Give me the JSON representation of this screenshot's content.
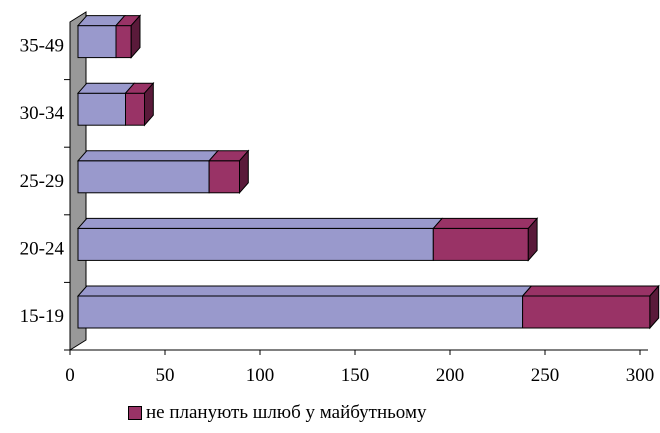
{
  "chart_data": {
    "type": "bar",
    "orientation": "horizontal",
    "stacked": true,
    "style": "3d",
    "categories": [
      "15-19",
      "20-24",
      "25-29",
      "30-34",
      "35-49"
    ],
    "series": [
      {
        "values": [
          234,
          187,
          69,
          25,
          20
        ],
        "color": "#9999cc"
      },
      {
        "name": "не планують шлюб у майбутньому",
        "values": [
          67,
          50,
          16,
          10,
          8
        ],
        "color": "#993366"
      }
    ],
    "xlim": [
      0,
      300
    ],
    "xticks": [
      0,
      50,
      100,
      150,
      200,
      250,
      300
    ],
    "grid": false,
    "legend": {
      "position": "bottom",
      "entries": [
        "не планують шлюб у майбутньому"
      ]
    }
  }
}
